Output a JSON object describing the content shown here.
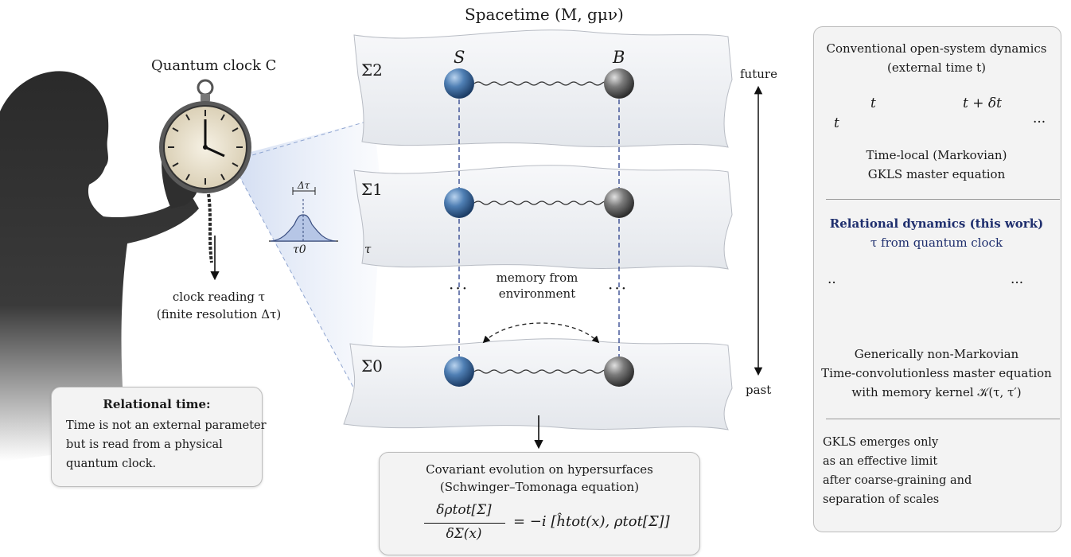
{
  "header": {
    "spacetime_title": "Spacetime (M, gμν)"
  },
  "clock": {
    "title": "Quantum clock C",
    "reading_line1": "clock reading τ",
    "reading_line2": "(finite resolution Δτ)",
    "tau0_label": "τ0",
    "delta_tau_label": "Δτ",
    "tau_label": "τ"
  },
  "surfaces": {
    "sigma2": "Σ2",
    "sigma1": "Σ1",
    "sigma0": "Σ0",
    "system_label": "S",
    "bath_label": "B",
    "ellipsis_left": "···",
    "ellipsis_right": "···",
    "memory_line1": "memory from",
    "memory_line2": "environment",
    "future": "future",
    "past": "past"
  },
  "relational_box": {
    "title": "Relational time:",
    "line1": "Time is not an external parameter",
    "line2": "but is read from a physical",
    "line3": "quantum clock."
  },
  "covariant_box": {
    "line1": "Covariant evolution on hypersurfaces",
    "line2": "(Schwinger–Tomonaga equation)",
    "numerator": "δρtot[Σ]",
    "denominator": "δΣ(x)",
    "rhs": "= −i [ĥtot(x), ρtot[Σ]]"
  },
  "right_panel": {
    "section1_title": "Conventional open-system dynamics",
    "section1_subtitle": "(external time t)",
    "timeline_axis": "t",
    "timeline_t": "t",
    "timeline_t_dt": "t + δt",
    "timeline_dots": "···",
    "section1_line1": "Time-local (Markovian)",
    "section1_line2": "GKLS master equation",
    "section2_title": "Relational dynamics (this work)",
    "section2_subtitle": "τ from quantum clock",
    "clocks_dots_left": "··",
    "clocks_dots_right": "···",
    "section2_line1": "Generically non-Markovian",
    "section2_line2": "Time-convolutionless master equation",
    "section2_line3": "with memory kernel 𝒦(τ, τ′)",
    "section3_line1": "GKLS emerges only",
    "section3_line2": "as an effective limit",
    "section3_line3": "after coarse-graining and",
    "section3_line4": "separation of scales"
  },
  "colors": {
    "system_sphere": "#3f6fa3",
    "bath_sphere": "#6b6b6b",
    "accent_blue": "#1f2f6e",
    "surface_fill": "#eef0f3"
  }
}
